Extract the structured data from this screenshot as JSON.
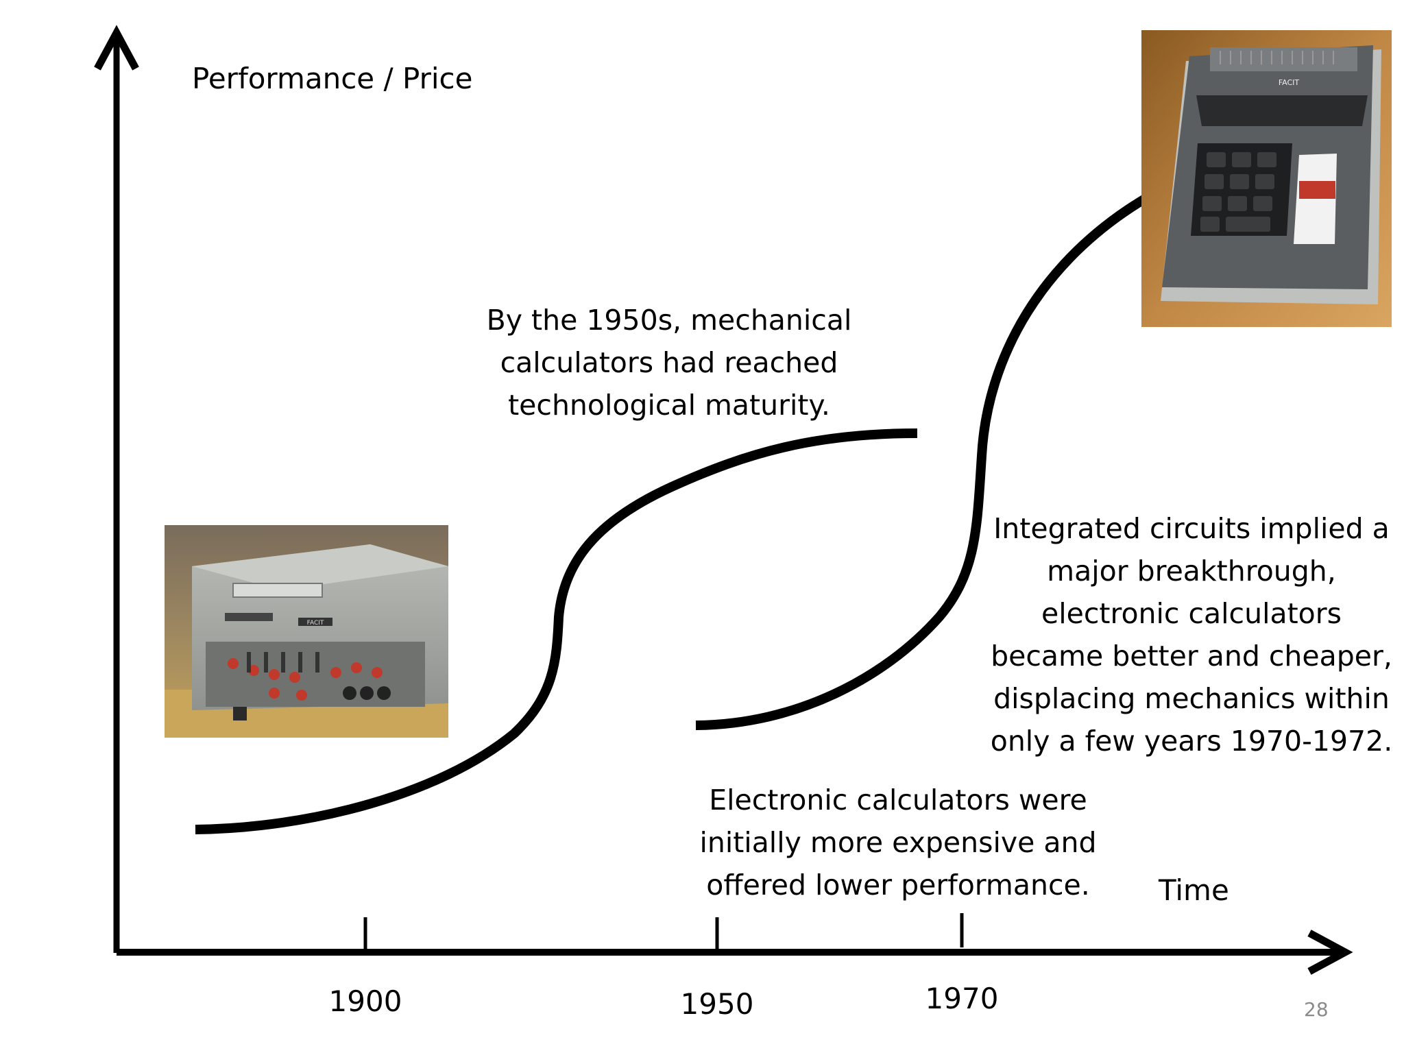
{
  "axes": {
    "y_label": "Performance / Price",
    "x_label": "Time"
  },
  "ticks": [
    {
      "label": "1900",
      "year": 1900
    },
    {
      "label": "1950",
      "year": 1950
    },
    {
      "label": "1970",
      "year": 1970
    }
  ],
  "annotations": {
    "maturity": "By the 1950s, mechanical\ncalculators had reached\ntechnological maturity.",
    "breakthrough": "Integrated circuits implied a\nmajor breakthrough,\nelectronic calculators\nbecame better and cheaper,\ndisplacing mechanics within\nonly a few years 1970-1972.",
    "initial": "Electronic calculators were\ninitially more expensive and\noffered lower performance."
  },
  "images": {
    "mechanical": {
      "brand": "FACIT"
    },
    "electronic": {
      "brand": "FACIT"
    }
  },
  "page_number": "28",
  "colors": {
    "line": "#000000",
    "page_number": "#8a8a8a"
  }
}
